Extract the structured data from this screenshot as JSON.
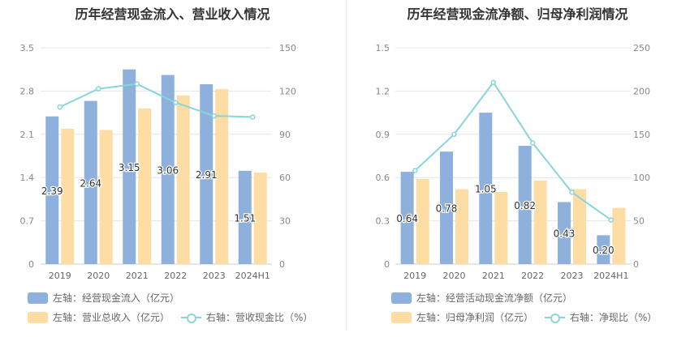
{
  "charts": [
    {
      "title": "历年经营现金流入、营业收入情况",
      "legend": [
        "左轴：经营现金流入（亿元）",
        "左轴：营业总收入（亿元）",
        "右轴：营收现金比（%）"
      ]
    },
    {
      "title": "历年经营现金流净额、归母净利润情况",
      "legend": [
        "左轴：经营活动现金流净额（亿元）",
        "左轴：归母净利润（亿元）",
        "右轴：净现比（%）"
      ]
    }
  ],
  "chart_data": [
    {
      "type": "bar",
      "categories": [
        "2019",
        "2020",
        "2021",
        "2022",
        "2023",
        "2024H1"
      ],
      "series": [
        {
          "name": "左轴：经营现金流入（亿元）",
          "axis": "left",
          "kind": "bar",
          "color": "#8eb0dc",
          "values": [
            2.39,
            2.64,
            3.15,
            3.06,
            2.91,
            1.51
          ],
          "labels": [
            "2.39",
            "2.64",
            "3.15",
            "3.06",
            "2.91",
            "1.51"
          ]
        },
        {
          "name": "左轴：营业总收入（亿元）",
          "axis": "left",
          "kind": "bar",
          "color": "#fddda3",
          "values": [
            2.19,
            2.17,
            2.52,
            2.73,
            2.83,
            1.48
          ]
        },
        {
          "name": "右轴：营收现金比（%）",
          "axis": "right",
          "kind": "line",
          "color": "#86d6dc",
          "values": [
            108.9,
            121.6,
            124.9,
            112,
            102.8,
            102
          ]
        }
      ],
      "yleft": {
        "ticks": [
          "0",
          "0.7",
          "1.4",
          "2.1",
          "2.8",
          "3.5"
        ],
        "max": 3.5
      },
      "yright": {
        "ticks": [
          "0",
          "30",
          "60",
          "90",
          "120",
          "150"
        ],
        "max": 150
      },
      "grid": true,
      "legend_position": "bottom"
    },
    {
      "type": "bar",
      "categories": [
        "2019",
        "2020",
        "2021",
        "2022",
        "2023",
        "2024H1"
      ],
      "series": [
        {
          "name": "左轴：经营活动现金流净额（亿元）",
          "axis": "left",
          "kind": "bar",
          "color": "#8eb0dc",
          "values": [
            0.64,
            0.78,
            1.05,
            0.82,
            0.43,
            0.2
          ],
          "labels": [
            "0.64",
            "0.78",
            "1.05",
            "0.82",
            "0.43",
            "0.20"
          ]
        },
        {
          "name": "左轴：归母净利润（亿元）",
          "axis": "left",
          "kind": "bar",
          "color": "#fddda3",
          "values": [
            0.59,
            0.52,
            0.5,
            0.58,
            0.52,
            0.39
          ]
        },
        {
          "name": "右轴：净现比（%）",
          "axis": "right",
          "kind": "line",
          "color": "#86d6dc",
          "values": [
            108,
            150,
            210,
            140,
            83,
            51
          ]
        }
      ],
      "yleft": {
        "ticks": [
          "0",
          "0.3",
          "0.6",
          "0.9",
          "1.2",
          "1.5"
        ],
        "max": 1.5
      },
      "yright": {
        "ticks": [
          "0",
          "50",
          "100",
          "150",
          "200",
          "250"
        ],
        "max": 250
      },
      "grid": true,
      "legend_position": "bottom"
    }
  ]
}
